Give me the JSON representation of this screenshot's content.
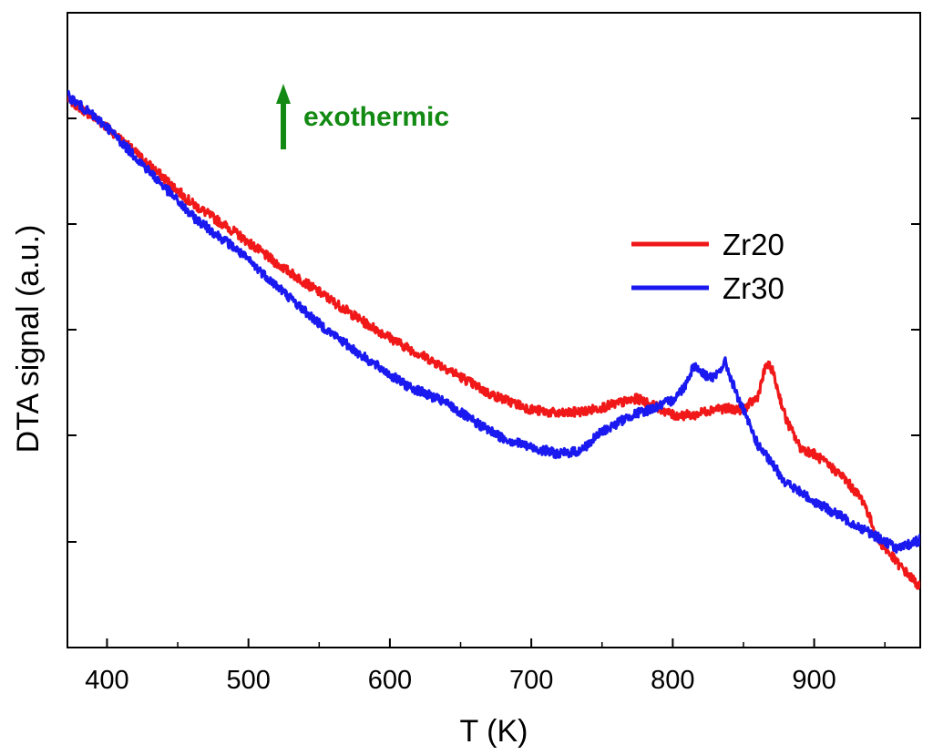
{
  "chart_data": {
    "type": "line",
    "title": "",
    "xlabel": "T (K)",
    "ylabel": "DTA signal (a.u.)",
    "xlim": [
      372,
      975
    ],
    "ylim": [
      0,
      100
    ],
    "x_ticks": [
      400,
      500,
      600,
      700,
      800,
      900
    ],
    "x_tick_labels": [
      "400",
      "500",
      "600",
      "700",
      "800",
      "900"
    ],
    "y_tick_labels_shown": false,
    "grid": false,
    "legend_position": "upper-right",
    "annotation": {
      "text": "exothermic",
      "color": "#138a13",
      "direction": "up"
    },
    "series": [
      {
        "name": "Zr20",
        "color": "#f01818",
        "x": [
          372,
          400,
          430,
          460,
          490,
          520,
          550,
          580,
          610,
          640,
          670,
          700,
          720,
          740,
          760,
          775,
          790,
          800,
          815,
          830,
          850,
          860,
          866,
          870,
          880,
          890,
          900,
          920,
          935,
          945,
          960,
          975
        ],
        "y": [
          86.5,
          82,
          76,
          70,
          65.5,
          60.5,
          56,
          51.5,
          47.5,
          44,
          40,
          37.5,
          36.8,
          37.3,
          38.4,
          39.2,
          37.8,
          36.6,
          36.6,
          37.7,
          37.5,
          39.5,
          44.5,
          44,
          36,
          31.5,
          30.5,
          27,
          23,
          17,
          13,
          9.5
        ]
      },
      {
        "name": "Zr30",
        "color": "#1a1af0",
        "x": [
          372,
          400,
          430,
          460,
          490,
          520,
          550,
          580,
          610,
          640,
          660,
          680,
          700,
          720,
          735,
          750,
          770,
          790,
          800,
          808,
          815,
          822,
          830,
          837,
          845,
          860,
          880,
          900,
          920,
          940,
          960,
          975
        ],
        "y": [
          87,
          82,
          75,
          68,
          63,
          57,
          51,
          46,
          41.5,
          38.5,
          35.5,
          33,
          31.5,
          30.5,
          31,
          34,
          36.5,
          38,
          39,
          41,
          44.5,
          43,
          42.5,
          45,
          40,
          32,
          26,
          23,
          20.5,
          18,
          15.5,
          17
        ]
      }
    ]
  }
}
